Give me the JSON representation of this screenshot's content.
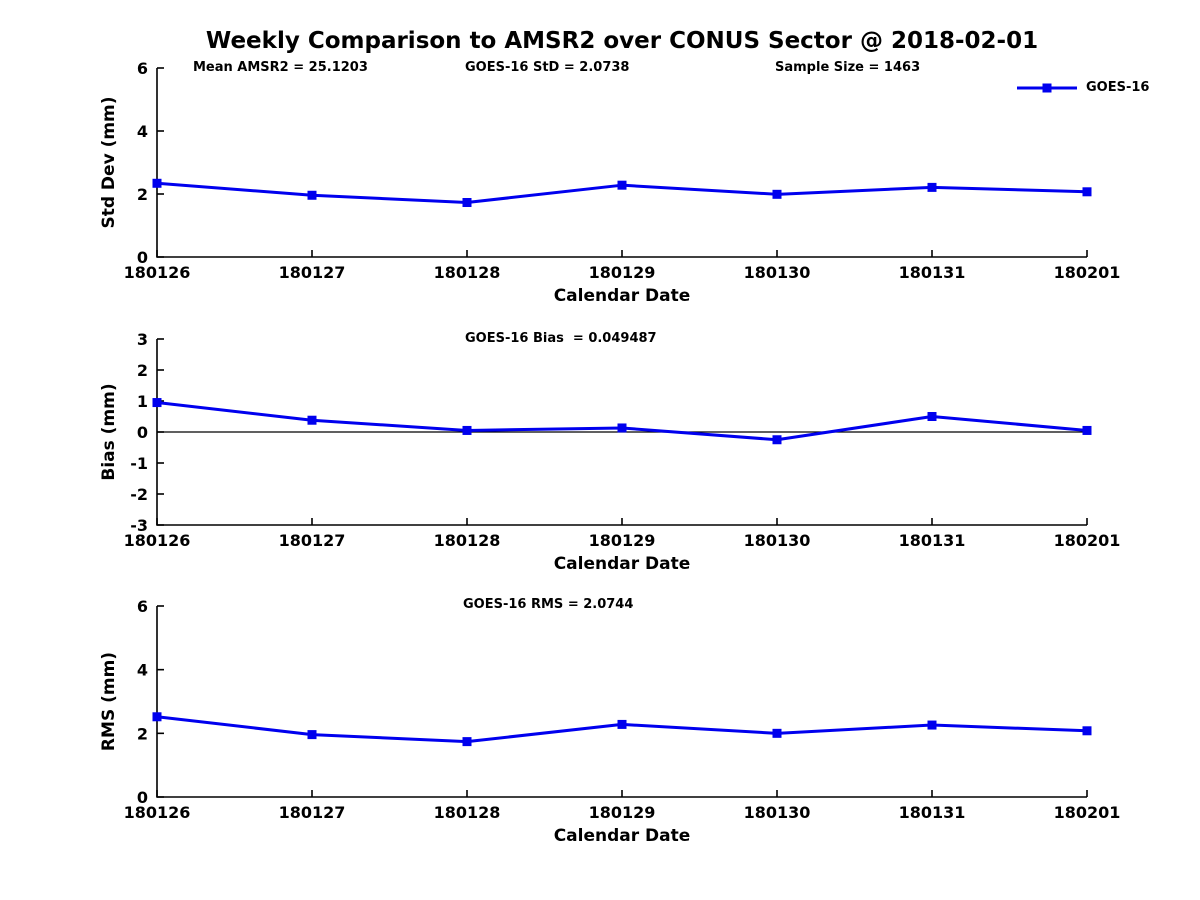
{
  "title": "Weekly Comparison to AMSR2 over CONUS Sector @ 2018-02-01",
  "header_annotations": {
    "mean_amsr2": "Mean AMSR2 = 25.1203",
    "goes16_std": "GOES-16 StD = 2.0738",
    "sample_size": "Sample Size = 1463"
  },
  "legend": {
    "label": "GOES-16",
    "position": "top-right"
  },
  "colors": {
    "line": "#0000EE",
    "axis": "#000000",
    "text": "#000000",
    "background": "#FFFFFF"
  },
  "chart_data": [
    {
      "type": "line",
      "series_name": "GOES-16",
      "categories": [
        "180126",
        "180127",
        "180128",
        "180129",
        "180130",
        "180131",
        "180201"
      ],
      "values": [
        2.34,
        1.96,
        1.73,
        2.28,
        1.99,
        2.21,
        2.07
      ],
      "ylabel": "Std Dev (mm)",
      "xlabel": "Calendar Date",
      "ylim": [
        0,
        6
      ],
      "yticks": [
        0,
        2,
        4,
        6
      ],
      "zero_line": false,
      "marker": "square",
      "grid": false,
      "annotation": ""
    },
    {
      "type": "line",
      "series_name": "GOES-16",
      "categories": [
        "180126",
        "180127",
        "180128",
        "180129",
        "180130",
        "180131",
        "180201"
      ],
      "values": [
        0.95,
        0.38,
        0.05,
        0.13,
        -0.25,
        0.5,
        0.05
      ],
      "ylabel": "Bias (mm)",
      "xlabel": "Calendar Date",
      "ylim": [
        -3,
        3
      ],
      "yticks": [
        -3,
        -2,
        -1,
        0,
        1,
        2,
        3
      ],
      "zero_line": true,
      "marker": "square",
      "grid": false,
      "annotation": "GOES-16 Bias  = 0.049487"
    },
    {
      "type": "line",
      "series_name": "GOES-16",
      "categories": [
        "180126",
        "180127",
        "180128",
        "180129",
        "180130",
        "180131",
        "180201"
      ],
      "values": [
        2.52,
        1.96,
        1.74,
        2.28,
        2.0,
        2.26,
        2.08
      ],
      "ylabel": "RMS (mm)",
      "xlabel": "Calendar Date",
      "ylim": [
        0,
        6
      ],
      "yticks": [
        0,
        2,
        4,
        6
      ],
      "zero_line": false,
      "marker": "square",
      "grid": false,
      "annotation": "GOES-16 RMS = 2.0744"
    }
  ]
}
